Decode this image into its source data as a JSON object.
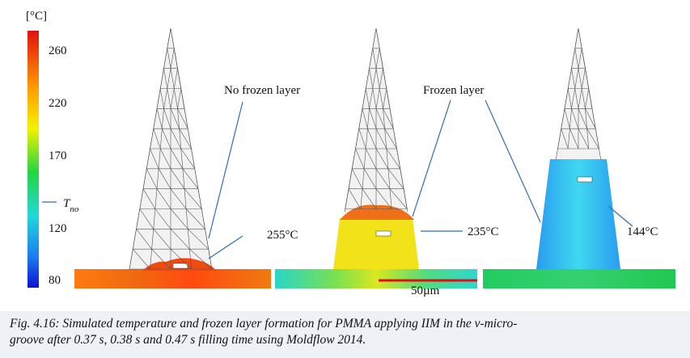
{
  "figure": {
    "unit_label": "[°C]",
    "colorbar_ticks": [
      "260",
      "220",
      "170",
      "120",
      "80"
    ],
    "marker": {
      "symbol": "T",
      "subscript": "no"
    },
    "panels": [
      {
        "annotation": "No frozen layer",
        "temperature": "255°C"
      },
      {
        "annotation": "Frozen layer",
        "temperature": "235°C"
      },
      {
        "temperature": "144°C"
      }
    ],
    "scale_bar": "50µm"
  },
  "caption": {
    "lines": [
      "Fig. 4.16: Simulated temperature and frozen layer formation for PMMA applying IIM in the v-micro-",
      "groove after 0.37 s, 0.38 s and 0.47 s filling time using Moldflow 2014."
    ]
  }
}
